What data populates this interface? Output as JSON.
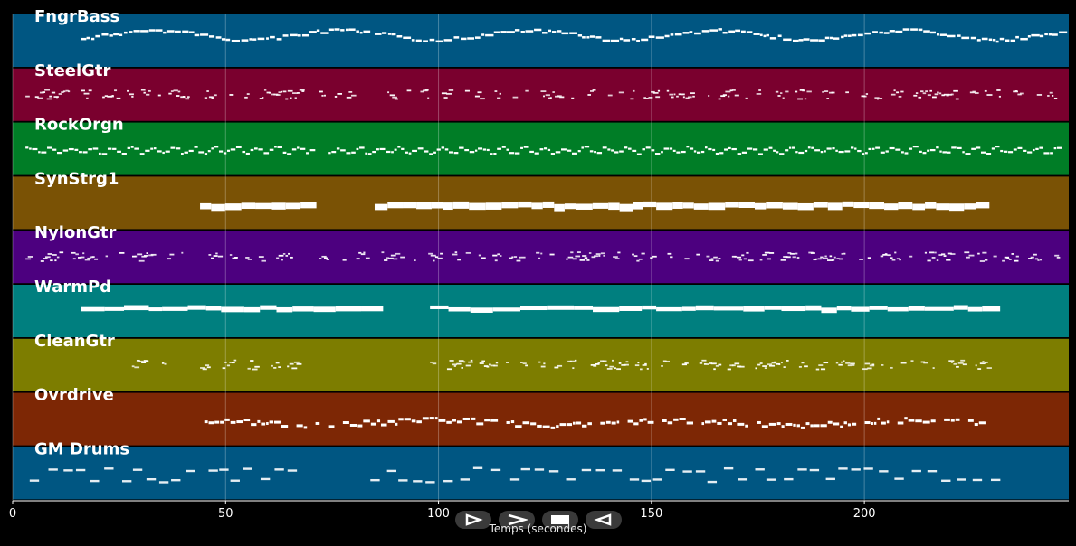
{
  "app": {
    "x_axis_label": "Temps (secondes)",
    "x_ticks": [
      0,
      50,
      100,
      150,
      200
    ],
    "x_range": [
      0,
      248
    ]
  },
  "tracks": [
    {
      "name": "FngrBass",
      "color": "#005682",
      "pattern": "melodic-line"
    },
    {
      "name": "SteelGtr",
      "color": "#7a002e",
      "pattern": "sparse-clusters"
    },
    {
      "name": "RockOrgn",
      "color": "#007d26",
      "pattern": "dense-line"
    },
    {
      "name": "SynStrg1",
      "color": "#7a5205",
      "pattern": "sustained-blocks"
    },
    {
      "name": "NylonGtr",
      "color": "#4c007f",
      "pattern": "arpeggio-clusters"
    },
    {
      "name": "WarmPd",
      "color": "#007f7f",
      "pattern": "sustained-line"
    },
    {
      "name": "CleanGtr",
      "color": "#7d7d00",
      "pattern": "dashed-clusters"
    },
    {
      "name": "Ovrdrive",
      "color": "#7d2705",
      "pattern": "riff-line"
    },
    {
      "name": "GM Drums",
      "color": "#005682",
      "pattern": "drum-grid"
    }
  ],
  "playback_controls": [
    {
      "name": "play-icon",
      "kind": "play"
    },
    {
      "name": "fast-forward-icon",
      "kind": "next"
    },
    {
      "name": "stop-icon",
      "kind": "stop"
    },
    {
      "name": "rewind-icon",
      "kind": "back"
    }
  ],
  "colors": {
    "background": "#000000",
    "notes": "#ffffff",
    "gridline": "#ffffff"
  }
}
